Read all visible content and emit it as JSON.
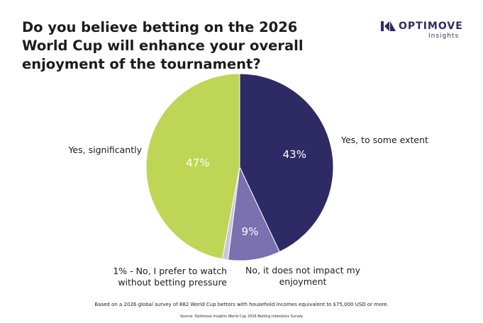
{
  "brand": {
    "name": "OPTIMOVE",
    "subtitle": "Insights"
  },
  "chart_data": {
    "type": "pie",
    "title": "Do you believe betting on the 2026 World Cup will enhance your overall enjoyment of the tournament?",
    "categories": [
      "Yes, to some extent",
      "No, it does not impact my enjoyment",
      "1% - No, I prefer to watch without betting pressure",
      "Yes, significantly"
    ],
    "values": [
      43,
      9,
      1,
      47
    ],
    "value_labels": [
      "43%",
      "9%",
      null,
      "47%"
    ],
    "colors": [
      "#2e2a63",
      "#7b70b0",
      "#c9c6df",
      "#bfd555"
    ],
    "footnote": "Based on a 2026 global survey of 882 World Cup bettors with household incomes equivalent to $75,000 USD or more.",
    "source": "Source: Optimove Insights World Cup 2026 Betting Intentions Survey"
  }
}
